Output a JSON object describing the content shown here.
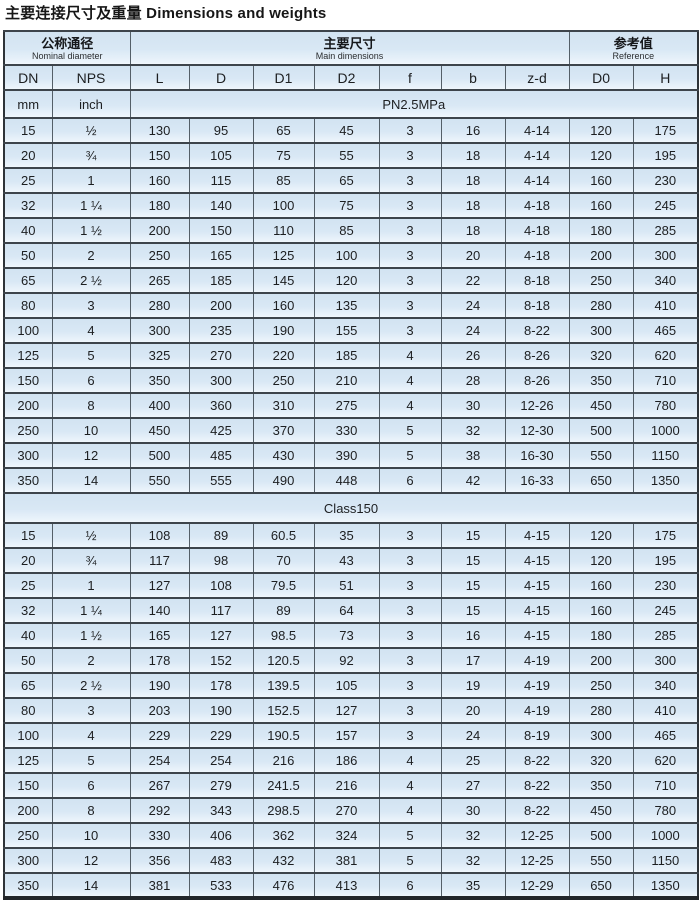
{
  "page_title": "主要连接尺寸及重量 Dimensions and weights",
  "colors": {
    "cell_background": "#d9e8f5",
    "cell_highlight": "#f2f8fd",
    "border_dark": "#3d444b",
    "border_outer": "#2e3338",
    "text": "#1d1f21",
    "title_text": "#161616",
    "page_background": "#ffffff"
  },
  "table": {
    "header_groups": [
      {
        "zh": "公称通径",
        "en": "Nominal diameter"
      },
      {
        "zh": "主要尺寸",
        "en": "Main dimensions"
      },
      {
        "zh": "参考值",
        "en": "Reference"
      }
    ],
    "columns": [
      "DN",
      "NPS",
      "L",
      "D",
      "D1",
      "D2",
      "f",
      "b",
      "z-d",
      "D0",
      "H"
    ],
    "units": {
      "dn": "mm",
      "nps": "inch"
    },
    "sections": [
      {
        "label": "PN2.5MPa",
        "rows": [
          [
            "15",
            "½",
            "130",
            "95",
            "65",
            "45",
            "3",
            "16",
            "4-14",
            "120",
            "175"
          ],
          [
            "20",
            "¾",
            "150",
            "105",
            "75",
            "55",
            "3",
            "18",
            "4-14",
            "120",
            "195"
          ],
          [
            "25",
            "1",
            "160",
            "115",
            "85",
            "65",
            "3",
            "18",
            "4-14",
            "160",
            "230"
          ],
          [
            "32",
            "1 ¼",
            "180",
            "140",
            "100",
            "75",
            "3",
            "18",
            "4-18",
            "160",
            "245"
          ],
          [
            "40",
            "1 ½",
            "200",
            "150",
            "110",
            "85",
            "3",
            "18",
            "4-18",
            "180",
            "285"
          ],
          [
            "50",
            "2",
            "250",
            "165",
            "125",
            "100",
            "3",
            "20",
            "4-18",
            "200",
            "300"
          ],
          [
            "65",
            "2 ½",
            "265",
            "185",
            "145",
            "120",
            "3",
            "22",
            "8-18",
            "250",
            "340"
          ],
          [
            "80",
            "3",
            "280",
            "200",
            "160",
            "135",
            "3",
            "24",
            "8-18",
            "280",
            "410"
          ],
          [
            "100",
            "4",
            "300",
            "235",
            "190",
            "155",
            "3",
            "24",
            "8-22",
            "300",
            "465"
          ],
          [
            "125",
            "5",
            "325",
            "270",
            "220",
            "185",
            "4",
            "26",
            "8-26",
            "320",
            "620"
          ],
          [
            "150",
            "6",
            "350",
            "300",
            "250",
            "210",
            "4",
            "28",
            "8-26",
            "350",
            "710"
          ],
          [
            "200",
            "8",
            "400",
            "360",
            "310",
            "275",
            "4",
            "30",
            "12-26",
            "450",
            "780"
          ],
          [
            "250",
            "10",
            "450",
            "425",
            "370",
            "330",
            "5",
            "32",
            "12-30",
            "500",
            "1000"
          ],
          [
            "300",
            "12",
            "500",
            "485",
            "430",
            "390",
            "5",
            "38",
            "16-30",
            "550",
            "1150"
          ],
          [
            "350",
            "14",
            "550",
            "555",
            "490",
            "448",
            "6",
            "42",
            "16-33",
            "650",
            "1350"
          ]
        ]
      },
      {
        "label": "Class150",
        "rows": [
          [
            "15",
            "½",
            "108",
            "89",
            "60.5",
            "35",
            "3",
            "15",
            "4-15",
            "120",
            "175"
          ],
          [
            "20",
            "¾",
            "117",
            "98",
            "70",
            "43",
            "3",
            "15",
            "4-15",
            "120",
            "195"
          ],
          [
            "25",
            "1",
            "127",
            "108",
            "79.5",
            "51",
            "3",
            "15",
            "4-15",
            "160",
            "230"
          ],
          [
            "32",
            "1 ¼",
            "140",
            "117",
            "89",
            "64",
            "3",
            "15",
            "4-15",
            "160",
            "245"
          ],
          [
            "40",
            "1 ½",
            "165",
            "127",
            "98.5",
            "73",
            "3",
            "16",
            "4-15",
            "180",
            "285"
          ],
          [
            "50",
            "2",
            "178",
            "152",
            "120.5",
            "92",
            "3",
            "17",
            "4-19",
            "200",
            "300"
          ],
          [
            "65",
            "2 ½",
            "190",
            "178",
            "139.5",
            "105",
            "3",
            "19",
            "4-19",
            "250",
            "340"
          ],
          [
            "80",
            "3",
            "203",
            "190",
            "152.5",
            "127",
            "3",
            "20",
            "4-19",
            "280",
            "410"
          ],
          [
            "100",
            "4",
            "229",
            "229",
            "190.5",
            "157",
            "3",
            "24",
            "8-19",
            "300",
            "465"
          ],
          [
            "125",
            "5",
            "254",
            "254",
            "216",
            "186",
            "4",
            "25",
            "8-22",
            "320",
            "620"
          ],
          [
            "150",
            "6",
            "267",
            "279",
            "241.5",
            "216",
            "4",
            "27",
            "8-22",
            "350",
            "710"
          ],
          [
            "200",
            "8",
            "292",
            "343",
            "298.5",
            "270",
            "4",
            "30",
            "8-22",
            "450",
            "780"
          ],
          [
            "250",
            "10",
            "330",
            "406",
            "362",
            "324",
            "5",
            "32",
            "12-25",
            "500",
            "1000"
          ],
          [
            "300",
            "12",
            "356",
            "483",
            "432",
            "381",
            "5",
            "32",
            "12-25",
            "550",
            "1150"
          ],
          [
            "350",
            "14",
            "381",
            "533",
            "476",
            "413",
            "6",
            "35",
            "12-29",
            "650",
            "1350"
          ]
        ]
      }
    ]
  }
}
